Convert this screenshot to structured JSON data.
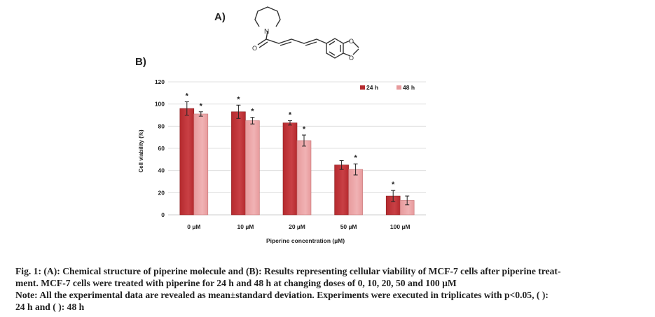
{
  "panels": {
    "a": "A)",
    "b": "B)"
  },
  "molecule": {
    "n_label": "N",
    "o_labels": [
      "O",
      "O",
      "O"
    ]
  },
  "chart_data": {
    "type": "bar",
    "categories": [
      "0 µM",
      "10 µM",
      "20 µM",
      "50 µM",
      "100 µM"
    ],
    "series": [
      {
        "name": "24 h",
        "values": [
          96,
          93,
          83,
          45,
          17
        ],
        "errors": [
          6,
          6,
          2,
          4,
          5
        ],
        "significant": [
          true,
          true,
          true,
          false,
          true
        ]
      },
      {
        "name": "48 h",
        "values": [
          91,
          85,
          67,
          41,
          13
        ],
        "errors": [
          2,
          3,
          5,
          5,
          4
        ],
        "significant": [
          true,
          true,
          true,
          true,
          false
        ]
      }
    ],
    "xlabel": "Piperine concentration (µM)",
    "ylabel": "Cell viability (%)",
    "ylim": [
      0,
      120
    ],
    "yticks": [
      0,
      20,
      40,
      60,
      80,
      100,
      120
    ],
    "grid": true,
    "legend": "top-right",
    "significance_mark": "*",
    "colors": {
      "24h": "#b52a2e",
      "48h": "#e79a9c"
    }
  },
  "caption": {
    "line1": "Fig. 1: (A): Chemical structure of piperine molecule and (B): Results representing cellular viability of MCF-7 cells after piperine treat-",
    "line2": "ment. MCF-7 cells were treated with piperine for 24 h and 48 h at changing doses of 0, 10, 20, 50 and 100 µM",
    "line3": "Note: All the experimental data are revealed as mean±standard deviation. Experiments were executed in triplicates with p<0.05, ( ):",
    "line4": "24 h and ( ): 48 h"
  }
}
